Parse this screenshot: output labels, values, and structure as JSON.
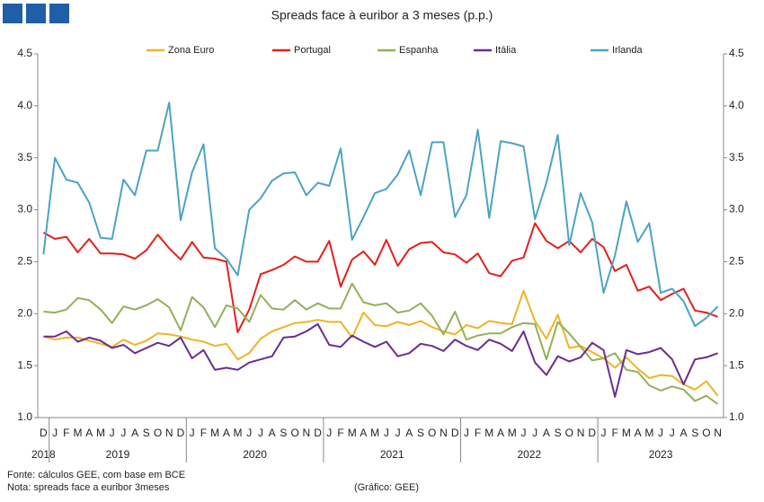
{
  "chart_data": {
    "type": "line",
    "title": "Spreads face à euribor a 3 meses (p.p.)",
    "categories": [
      "D",
      "J",
      "F",
      "M",
      "A",
      "M",
      "J",
      "J",
      "A",
      "S",
      "O",
      "N",
      "D",
      "J",
      "F",
      "M",
      "A",
      "M",
      "J",
      "J",
      "A",
      "S",
      "O",
      "N",
      "D",
      "J",
      "F",
      "M",
      "A",
      "M",
      "J",
      "J",
      "A",
      "S",
      "O",
      "N",
      "D",
      "J",
      "F",
      "M",
      "A",
      "M",
      "J",
      "J",
      "A",
      "S",
      "O",
      "N",
      "D",
      "J",
      "F",
      "M",
      "A",
      "M",
      "J",
      "J",
      "A",
      "S",
      "O",
      "N"
    ],
    "years": [
      {
        "label": "2018",
        "count": 1
      },
      {
        "label": "2019",
        "count": 12
      },
      {
        "label": "2020",
        "count": 12
      },
      {
        "label": "2021",
        "count": 12
      },
      {
        "label": "2022",
        "count": 12
      },
      {
        "label": "2023",
        "count": 11
      }
    ],
    "series": [
      {
        "name": "Zona Euro",
        "color": "#f0b323",
        "values": [
          1.78,
          1.75,
          1.77,
          1.77,
          1.74,
          1.71,
          1.68,
          1.75,
          1.7,
          1.74,
          1.81,
          1.8,
          1.78,
          1.75,
          1.73,
          1.69,
          1.71,
          1.56,
          1.62,
          1.76,
          1.83,
          1.87,
          1.91,
          1.92,
          1.94,
          1.92,
          1.92,
          1.77,
          2.01,
          1.89,
          1.88,
          1.92,
          1.89,
          1.93,
          1.87,
          1.83,
          1.8,
          1.89,
          1.86,
          1.93,
          1.91,
          1.9,
          2.22,
          1.93,
          1.76,
          1.99,
          1.67,
          1.69,
          1.63,
          1.57,
          1.48,
          1.58,
          1.47,
          1.38,
          1.41,
          1.4,
          1.32,
          1.27,
          1.35,
          1.21
        ]
      },
      {
        "name": "Portugal",
        "color": "#e3201b",
        "values": [
          2.78,
          2.72,
          2.74,
          2.59,
          2.72,
          2.58,
          2.58,
          2.57,
          2.53,
          2.61,
          2.76,
          2.63,
          2.52,
          2.69,
          2.54,
          2.53,
          2.5,
          1.82,
          2.04,
          2.38,
          2.42,
          2.47,
          2.55,
          2.5,
          2.5,
          2.7,
          2.26,
          2.52,
          2.6,
          2.47,
          2.71,
          2.46,
          2.62,
          2.68,
          2.69,
          2.59,
          2.57,
          2.49,
          2.58,
          2.39,
          2.36,
          2.51,
          2.54,
          2.87,
          2.7,
          2.63,
          2.7,
          2.59,
          2.72,
          2.64,
          2.41,
          2.47,
          2.22,
          2.26,
          2.13,
          2.19,
          2.24,
          2.03,
          2.01,
          1.97
        ]
      },
      {
        "name": "Espanha",
        "color": "#93b058",
        "values": [
          2.02,
          2.01,
          2.04,
          2.15,
          2.13,
          2.04,
          1.91,
          2.07,
          2.04,
          2.08,
          2.14,
          2.06,
          1.84,
          2.16,
          2.06,
          1.87,
          2.08,
          2.05,
          1.92,
          2.18,
          2.05,
          2.04,
          2.13,
          2.04,
          2.1,
          2.05,
          2.05,
          2.29,
          2.11,
          2.08,
          2.1,
          2.01,
          2.03,
          2.1,
          1.98,
          1.8,
          2.02,
          1.75,
          1.79,
          1.81,
          1.81,
          1.87,
          1.91,
          1.9,
          1.56,
          1.92,
          1.81,
          1.68,
          1.55,
          1.57,
          1.62,
          1.46,
          1.44,
          1.31,
          1.26,
          1.3,
          1.27,
          1.16,
          1.21,
          1.13
        ]
      },
      {
        "name": "Itália",
        "color": "#6a2c91",
        "values": [
          1.78,
          1.78,
          1.83,
          1.73,
          1.77,
          1.74,
          1.67,
          1.7,
          1.62,
          1.67,
          1.72,
          1.69,
          1.77,
          1.57,
          1.65,
          1.46,
          1.48,
          1.46,
          1.53,
          1.56,
          1.59,
          1.77,
          1.78,
          1.83,
          1.9,
          1.7,
          1.68,
          1.79,
          1.73,
          1.68,
          1.73,
          1.59,
          1.62,
          1.71,
          1.69,
          1.64,
          1.75,
          1.69,
          1.65,
          1.75,
          1.71,
          1.64,
          1.83,
          1.53,
          1.41,
          1.59,
          1.54,
          1.58,
          1.72,
          1.65,
          1.2,
          1.65,
          1.61,
          1.63,
          1.67,
          1.56,
          1.32,
          1.56,
          1.58,
          1.62
        ]
      },
      {
        "name": "Irlanda",
        "color": "#4ba3c3",
        "values": [
          2.57,
          3.5,
          3.29,
          3.26,
          3.07,
          2.73,
          2.72,
          3.29,
          3.14,
          3.57,
          3.57,
          4.03,
          2.9,
          3.36,
          3.63,
          2.63,
          2.53,
          2.37,
          3.0,
          3.11,
          3.28,
          3.35,
          3.36,
          3.14,
          3.26,
          3.23,
          3.59,
          2.71,
          2.93,
          3.16,
          3.2,
          3.34,
          3.57,
          3.14,
          3.65,
          3.65,
          2.93,
          3.14,
          3.77,
          2.92,
          3.66,
          3.64,
          3.61,
          2.91,
          3.26,
          3.72,
          2.66,
          3.16,
          2.88,
          2.2,
          2.56,
          3.08,
          2.69,
          2.87,
          2.2,
          2.24,
          2.12,
          1.88,
          1.96,
          2.07
        ]
      }
    ],
    "ylim": [
      1.0,
      4.5
    ],
    "yticks": [
      {
        "value": 1.0,
        "label": "1.0"
      },
      1.5,
      {
        "value": 2.0,
        "label": "2.0"
      },
      2.5,
      {
        "value": 3.0,
        "label": "3.0"
      },
      3.5,
      {
        "value": 4.0,
        "label": "4.0"
      },
      4.5
    ],
    "notes": [
      "Fonte: cálculos GEE, com base em BCE",
      "Nota: spreads face a euribor 3meses"
    ],
    "credit": "(Gráfico: GEE)"
  }
}
